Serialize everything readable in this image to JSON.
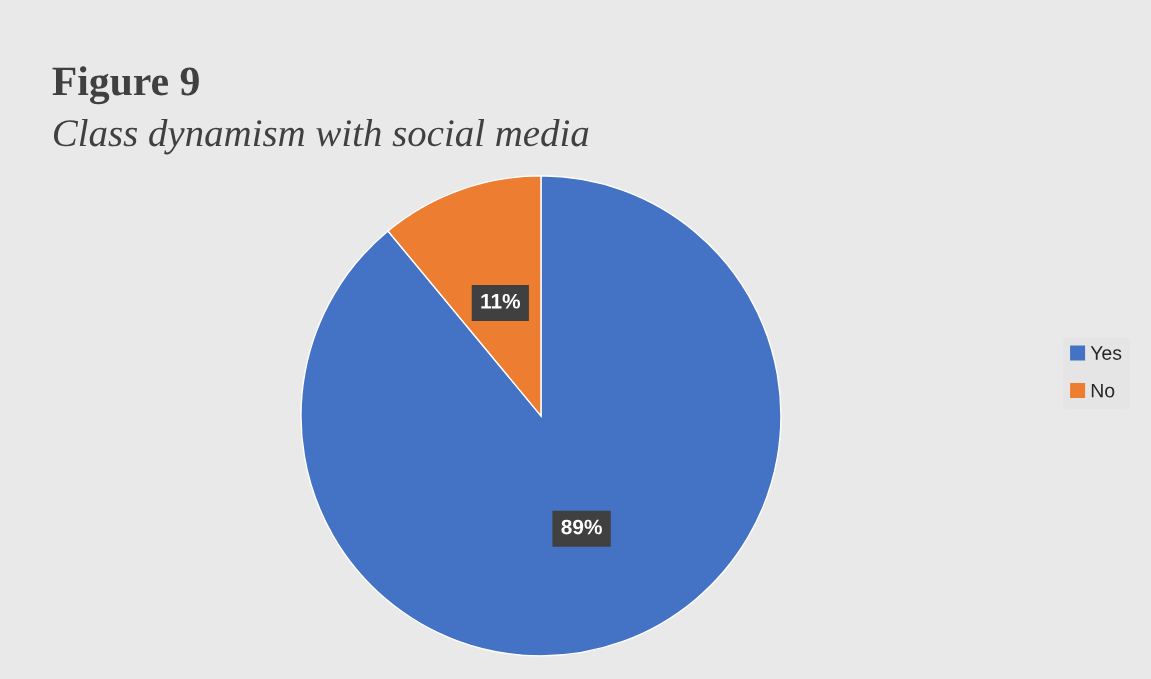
{
  "chart_data": {
    "type": "pie",
    "title": "Figure 9",
    "subtitle": "Class dynamism with social media",
    "categories": [
      "Yes",
      "No"
    ],
    "values": [
      89,
      11
    ],
    "colors": [
      "#4472c4",
      "#ed7d31"
    ],
    "value_labels": [
      "89%",
      "11%"
    ],
    "legend": "right"
  }
}
